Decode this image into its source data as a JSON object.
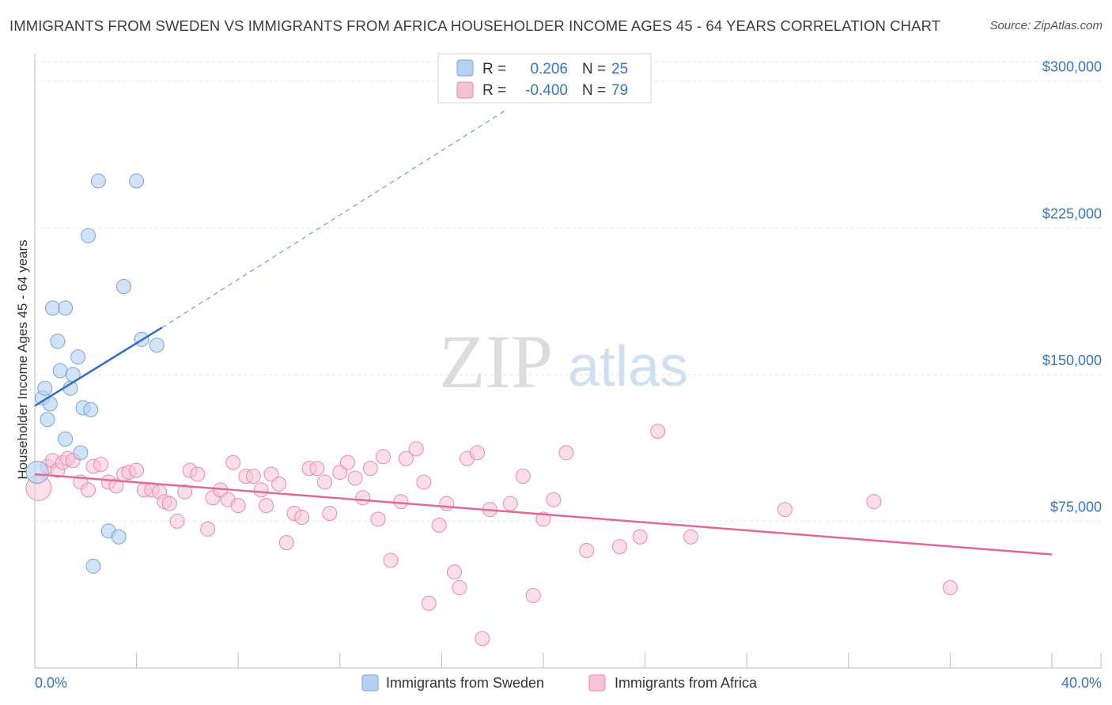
{
  "title": "IMMIGRANTS FROM SWEDEN VS IMMIGRANTS FROM AFRICA HOUSEHOLDER INCOME AGES 45 - 64 YEARS CORRELATION CHART",
  "source": "Source: ZipAtlas.com",
  "watermark": {
    "zip": "ZIP",
    "atlas": "atlas"
  },
  "legend": {
    "sweden": {
      "r_label": "R =",
      "r_value": "0.206",
      "n_label": "N =",
      "n_value": "25"
    },
    "africa": {
      "r_label": "R =",
      "r_value": "-0.400",
      "n_label": "N =",
      "n_value": "79"
    }
  },
  "bottom_legend": {
    "sweden": "Immigrants from Sweden",
    "africa": "Immigrants from Africa"
  },
  "colors": {
    "sweden_fill": "#b6d0f2",
    "sweden_stroke": "#7aa3d8",
    "sweden_line": "#2f6fc9",
    "africa_fill": "#f7c3d4",
    "africa_stroke": "#e88aab",
    "africa_line": "#e06a95",
    "tick_text": "#3a73c0"
  },
  "chart_data": {
    "type": "scatter",
    "title": "IMMIGRANTS FROM SWEDEN VS IMMIGRANTS FROM AFRICA HOUSEHOLDER INCOME AGES 45 - 64 YEARS CORRELATION CHART",
    "xlabel": "",
    "ylabel": "Householder Income Ages 45 - 64 years",
    "xlim": [
      0,
      40
    ],
    "ylim": [
      0,
      310000
    ],
    "x_tick_labels": [
      "0.0%",
      "40.0%"
    ],
    "y_ticks": [
      75000,
      150000,
      225000,
      300000
    ],
    "y_tick_labels": [
      "$75,000",
      "$150,000",
      "$225,000",
      "$300,000"
    ],
    "grid": true,
    "legend_position": "top-center",
    "series": [
      {
        "name": "Immigrants from Sweden",
        "r": 0.206,
        "n": 25,
        "trend": {
          "x": [
            0.0,
            5.0
          ],
          "y": [
            134000,
            174000
          ],
          "dashed_to": [
            18.5,
            285000
          ]
        },
        "points": [
          {
            "x": 0.1,
            "y": 100000,
            "big": true
          },
          {
            "x": 0.3,
            "y": 138000
          },
          {
            "x": 0.4,
            "y": 143000
          },
          {
            "x": 0.5,
            "y": 127000
          },
          {
            "x": 0.6,
            "y": 135000
          },
          {
            "x": 0.7,
            "y": 184000
          },
          {
            "x": 0.9,
            "y": 167000
          },
          {
            "x": 1.0,
            "y": 152000
          },
          {
            "x": 1.2,
            "y": 117000
          },
          {
            "x": 1.2,
            "y": 184000
          },
          {
            "x": 1.4,
            "y": 143000
          },
          {
            "x": 1.5,
            "y": 150000
          },
          {
            "x": 1.7,
            "y": 159000
          },
          {
            "x": 1.8,
            "y": 110000
          },
          {
            "x": 1.9,
            "y": 133000
          },
          {
            "x": 2.1,
            "y": 221000
          },
          {
            "x": 2.2,
            "y": 132000
          },
          {
            "x": 2.3,
            "y": 52000
          },
          {
            "x": 2.5,
            "y": 249000
          },
          {
            "x": 2.9,
            "y": 70000
          },
          {
            "x": 3.3,
            "y": 67000
          },
          {
            "x": 3.5,
            "y": 195000
          },
          {
            "x": 4.0,
            "y": 249000
          },
          {
            "x": 4.2,
            "y": 168000
          },
          {
            "x": 4.8,
            "y": 165000
          }
        ]
      },
      {
        "name": "Immigrants from Africa",
        "r": -0.4,
        "n": 79,
        "trend": {
          "x": [
            0.0,
            40.0
          ],
          "y": [
            99000,
            58000
          ]
        },
        "points": [
          {
            "x": 0.15,
            "y": 92000,
            "big": true
          },
          {
            "x": 0.5,
            "y": 103000
          },
          {
            "x": 0.7,
            "y": 106000
          },
          {
            "x": 0.9,
            "y": 101000
          },
          {
            "x": 1.1,
            "y": 105000
          },
          {
            "x": 1.3,
            "y": 107000
          },
          {
            "x": 1.5,
            "y": 106000
          },
          {
            "x": 1.8,
            "y": 95000
          },
          {
            "x": 2.1,
            "y": 91000
          },
          {
            "x": 2.3,
            "y": 103000
          },
          {
            "x": 2.6,
            "y": 104000
          },
          {
            "x": 2.9,
            "y": 95000
          },
          {
            "x": 3.2,
            "y": 93000
          },
          {
            "x": 3.5,
            "y": 99000
          },
          {
            "x": 3.7,
            "y": 100000
          },
          {
            "x": 4.0,
            "y": 101000
          },
          {
            "x": 4.3,
            "y": 91000
          },
          {
            "x": 4.6,
            "y": 91000
          },
          {
            "x": 4.9,
            "y": 90000
          },
          {
            "x": 5.1,
            "y": 85000
          },
          {
            "x": 5.3,
            "y": 84000
          },
          {
            "x": 5.6,
            "y": 75000
          },
          {
            "x": 5.9,
            "y": 90000
          },
          {
            "x": 6.1,
            "y": 101000
          },
          {
            "x": 6.4,
            "y": 99000
          },
          {
            "x": 6.8,
            "y": 71000
          },
          {
            "x": 7.0,
            "y": 87000
          },
          {
            "x": 7.3,
            "y": 91000
          },
          {
            "x": 7.6,
            "y": 86000
          },
          {
            "x": 7.8,
            "y": 105000
          },
          {
            "x": 8.0,
            "y": 83000
          },
          {
            "x": 8.3,
            "y": 98000
          },
          {
            "x": 8.6,
            "y": 98000
          },
          {
            "x": 8.9,
            "y": 91000
          },
          {
            "x": 9.1,
            "y": 83000
          },
          {
            "x": 9.3,
            "y": 99000
          },
          {
            "x": 9.6,
            "y": 94000
          },
          {
            "x": 9.9,
            "y": 64000
          },
          {
            "x": 10.2,
            "y": 79000
          },
          {
            "x": 10.5,
            "y": 77000
          },
          {
            "x": 10.8,
            "y": 102000
          },
          {
            "x": 11.1,
            "y": 102000
          },
          {
            "x": 11.4,
            "y": 95000
          },
          {
            "x": 11.6,
            "y": 79000
          },
          {
            "x": 12.0,
            "y": 100000
          },
          {
            "x": 12.3,
            "y": 105000
          },
          {
            "x": 12.6,
            "y": 97000
          },
          {
            "x": 12.9,
            "y": 87000
          },
          {
            "x": 13.2,
            "y": 102000
          },
          {
            "x": 13.5,
            "y": 76000
          },
          {
            "x": 13.7,
            "y": 108000
          },
          {
            "x": 14.0,
            "y": 55000
          },
          {
            "x": 14.4,
            "y": 85000
          },
          {
            "x": 14.6,
            "y": 107000
          },
          {
            "x": 15.0,
            "y": 112000
          },
          {
            "x": 15.3,
            "y": 95000
          },
          {
            "x": 15.5,
            "y": 33000
          },
          {
            "x": 15.9,
            "y": 73000
          },
          {
            "x": 16.2,
            "y": 84000
          },
          {
            "x": 16.5,
            "y": 49000
          },
          {
            "x": 16.7,
            "y": 41000
          },
          {
            "x": 17.0,
            "y": 107000
          },
          {
            "x": 17.4,
            "y": 110000
          },
          {
            "x": 17.6,
            "y": 15000
          },
          {
            "x": 17.9,
            "y": 81000
          },
          {
            "x": 18.7,
            "y": 84000
          },
          {
            "x": 19.2,
            "y": 98000
          },
          {
            "x": 19.6,
            "y": 37000
          },
          {
            "x": 20.0,
            "y": 76000
          },
          {
            "x": 20.4,
            "y": 86000
          },
          {
            "x": 20.9,
            "y": 110000
          },
          {
            "x": 21.7,
            "y": 60000
          },
          {
            "x": 23.0,
            "y": 62000
          },
          {
            "x": 23.8,
            "y": 67000
          },
          {
            "x": 24.5,
            "y": 121000
          },
          {
            "x": 25.8,
            "y": 67000
          },
          {
            "x": 29.5,
            "y": 81000
          },
          {
            "x": 33.0,
            "y": 85000
          },
          {
            "x": 36.0,
            "y": 41000
          }
        ]
      }
    ]
  }
}
